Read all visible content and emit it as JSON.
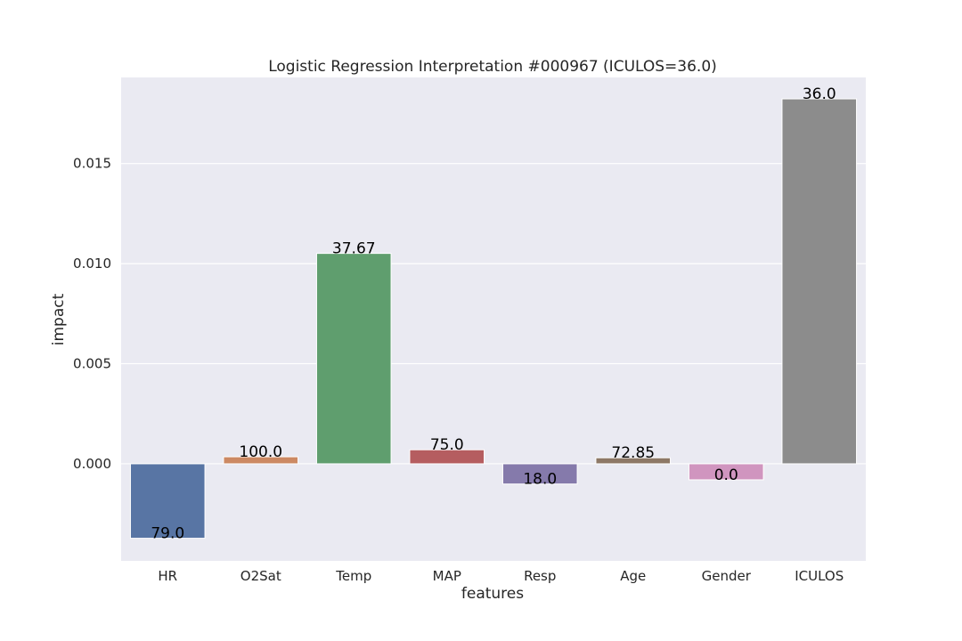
{
  "chart_data": {
    "type": "bar",
    "title": "Logistic Regression Interpretation #000967 (ICULOS=36.0)",
    "xlabel": "features",
    "ylabel": "impact",
    "categories": [
      "HR",
      "O2Sat",
      "Temp",
      "MAP",
      "Resp",
      "Age",
      "Gender",
      "ICULOS"
    ],
    "values": [
      -0.00372,
      0.00035,
      0.01051,
      0.0007,
      -0.00101,
      0.0003,
      -0.0008,
      0.01823
    ],
    "bar_labels": [
      "79.0",
      "100.0",
      "37.67",
      "75.0",
      "18.0",
      "72.85",
      "0.0",
      "36.0"
    ],
    "colors": [
      "#5875a4",
      "#cc8963",
      "#5f9e6e",
      "#b55d60",
      "#857aab",
      "#8d7866",
      "#d095bf",
      "#8c8c8c"
    ],
    "ylim": [
      -0.00485,
      0.0193
    ],
    "yticks": [
      0.0,
      0.005,
      0.01,
      0.015
    ],
    "ytick_labels": [
      "0.000",
      "0.005",
      "0.010",
      "0.015"
    ],
    "grid": true,
    "background": "#eaeaf2"
  }
}
